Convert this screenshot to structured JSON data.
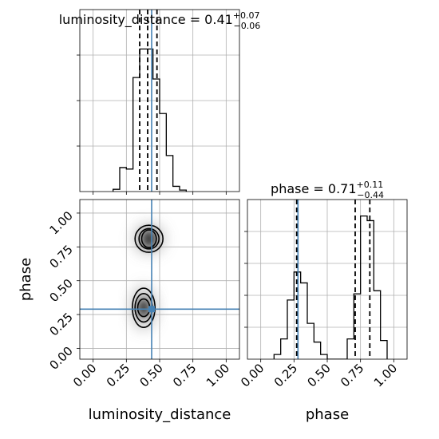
{
  "chart_data": [
    {
      "type": "histogram",
      "panel": "luminosity_distance-1d",
      "title": {
        "prefix": "luminosity_distance = 0.41",
        "sup": "+0.07",
        "sub": "−0.06"
      },
      "xlim": [
        -0.1,
        1.1
      ],
      "bins": {
        "edges": [
          0.15,
          0.2,
          0.25,
          0.3,
          0.35,
          0.4,
          0.45,
          0.5,
          0.55,
          0.6,
          0.65,
          0.7
        ],
        "counts": [
          0.015,
          0.16,
          0.15,
          0.76,
          0.95,
          0.95,
          0.75,
          0.52,
          0.24,
          0.035,
          0.01
        ]
      },
      "quantile_lines": [
        0.35,
        0.41,
        0.48
      ],
      "truth": 0.44,
      "grid": true,
      "colors": {
        "hist": "#000000",
        "truth": "#4682b4",
        "grid": "#b0b0b0"
      }
    },
    {
      "type": "scatter",
      "panel": "phase-vs-luminosity_distance-2d",
      "xlabel": "luminosity_distance",
      "ylabel": "phase",
      "xlim": [
        -0.1,
        1.1
      ],
      "ylim": [
        -0.08,
        1.1
      ],
      "xticks": [
        "0.00",
        "0.25",
        "0.50",
        "0.75",
        "1.00"
      ],
      "yticks": [
        "0.00",
        "0.25",
        "0.50",
        "0.75",
        "1.00"
      ],
      "clusters": [
        {
          "center": [
            0.42,
            0.81
          ],
          "contours": [
            [
              0.055,
              0.065
            ],
            [
              0.075,
              0.075
            ],
            [
              0.105,
              0.1
            ]
          ]
        },
        {
          "center": [
            0.38,
            0.3
          ],
          "contours": [
            [
              0.045,
              0.065
            ],
            [
              0.065,
              0.105
            ],
            [
              0.085,
              0.145
            ]
          ]
        }
      ],
      "truth": {
        "x": 0.44,
        "y": 0.29
      },
      "grid": true,
      "colors": {
        "contour": "#000000",
        "density_dark": "#2a2a2a",
        "density_light": "#b4b4b4",
        "truth": "#4682b4"
      }
    },
    {
      "type": "histogram",
      "panel": "phase-1d",
      "xlabel": "phase",
      "title": {
        "prefix": "phase = 0.71",
        "sup": "+0.11",
        "sub": "−0.44"
      },
      "xlim": [
        -0.1,
        1.1
      ],
      "xticks": [
        "0.00",
        "0.25",
        "0.50",
        "0.75",
        "1.00"
      ],
      "bins": {
        "edges": [
          0.1,
          0.15,
          0.2,
          0.25,
          0.3,
          0.35,
          0.4,
          0.45,
          0.5,
          0.55,
          0.6,
          0.65,
          0.7,
          0.75,
          0.8,
          0.85,
          0.9,
          0.95
        ],
        "counts": [
          0.03,
          0.13,
          0.38,
          0.56,
          0.49,
          0.23,
          0.11,
          0.03,
          0.0,
          0.0,
          0.0,
          0.13,
          0.42,
          0.92,
          0.89,
          0.44,
          0.12
        ]
      },
      "quantile_lines": [
        0.27,
        0.71,
        0.82
      ],
      "truth": 0.28,
      "grid": true,
      "colors": {
        "hist": "#000000",
        "truth": "#4682b4",
        "grid": "#b0b0b0"
      }
    }
  ]
}
